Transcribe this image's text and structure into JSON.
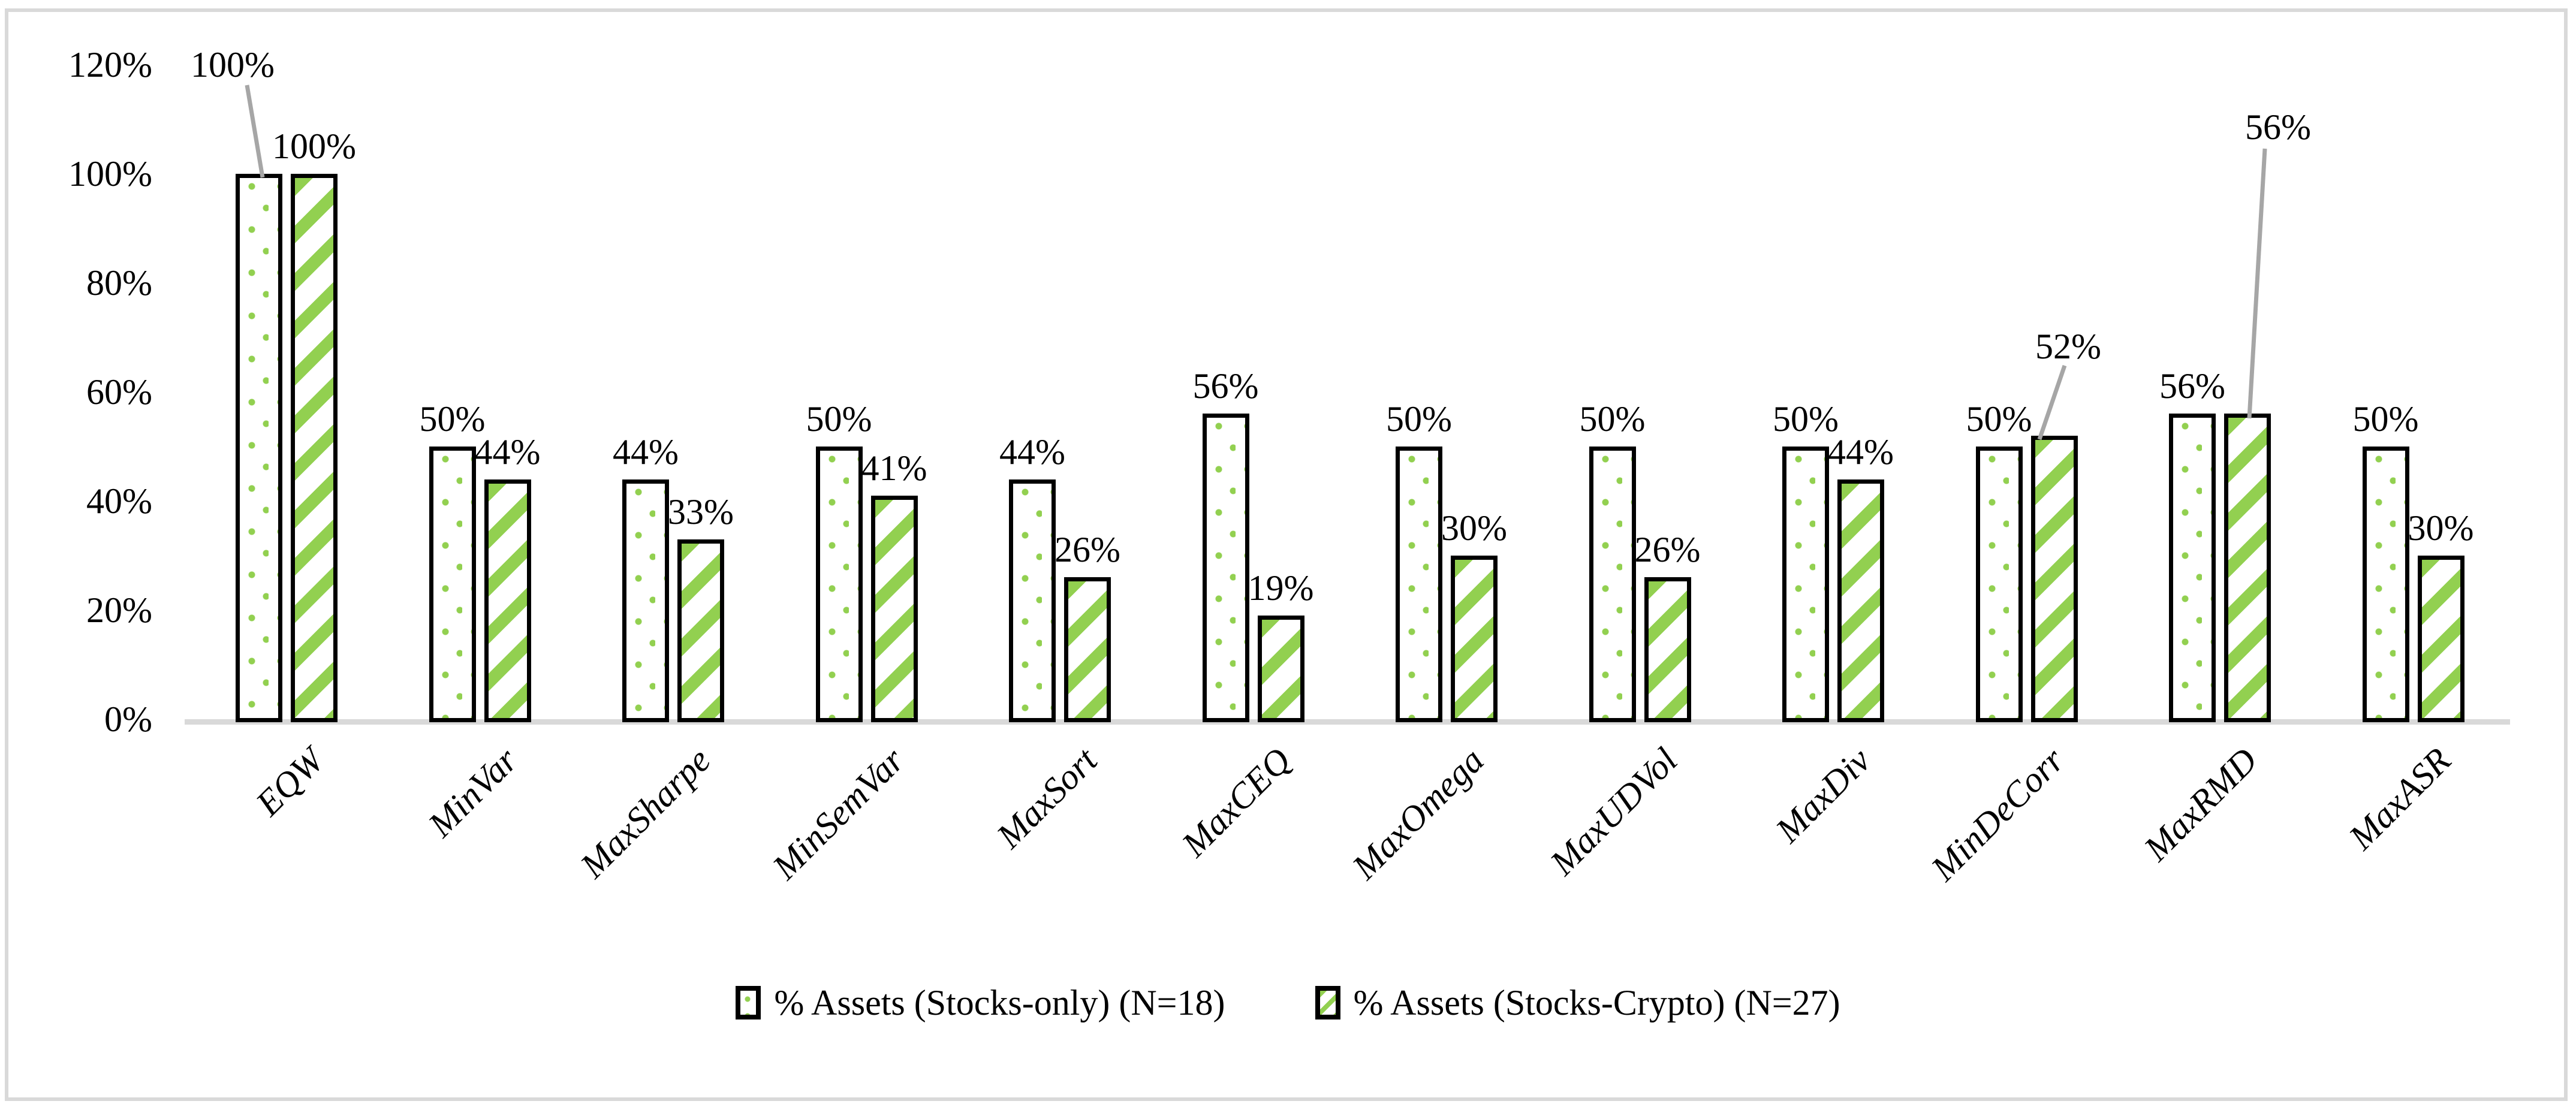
{
  "chart_data": {
    "type": "bar",
    "title": "",
    "categories": [
      "EQW",
      "MinVar",
      "MaxSharpe",
      "MinSemVar",
      "MaxSort",
      "MaxCEQ",
      "MaxOmega",
      "MaxUDVol",
      "MaxDiv",
      "MinDeCorr",
      "MaxRMD",
      "MaxASR"
    ],
    "series": [
      {
        "name": "% Assets (Stocks-only) (N=18)",
        "pattern": "green-dots-on-white",
        "values": [
          100,
          50,
          44,
          50,
          44,
          56,
          50,
          50,
          50,
          50,
          56,
          50
        ]
      },
      {
        "name": "% Assets (Stocks-Crypto) (N=27)",
        "pattern": "green-diagonal-stripes-on-white",
        "values": [
          100,
          44,
          33,
          41,
          26,
          19,
          30,
          26,
          44,
          52,
          56,
          30
        ]
      }
    ],
    "value_suffix": "%",
    "data_labels": true,
    "callout_labels": [
      {
        "series": 0,
        "category": "EQW",
        "label": "100%"
      },
      {
        "series": 1,
        "category": "MinDeCorr",
        "label": "52%"
      },
      {
        "series": 1,
        "category": "MaxRMD",
        "label": "56%"
      }
    ],
    "xlabel": "",
    "ylabel": "",
    "ylim": [
      0,
      120
    ],
    "yticks": [
      "0%",
      "20%",
      "40%",
      "60%",
      "80%",
      "100%",
      "120%"
    ],
    "grid": false,
    "legend_position": "bottom",
    "colors": {
      "pattern_green": "#92d050",
      "bar_outline": "#000000",
      "axis_line": "#d9d9d9",
      "leader_line": "#a6a6a6",
      "text": "#000000",
      "frame_border": "#d9d9d9",
      "background": "#ffffff"
    }
  },
  "legend": {
    "items": [
      {
        "label": "% Assets (Stocks-only) (N=18)"
      },
      {
        "label": "% Assets (Stocks-Crypto) (N=27)"
      }
    ]
  }
}
